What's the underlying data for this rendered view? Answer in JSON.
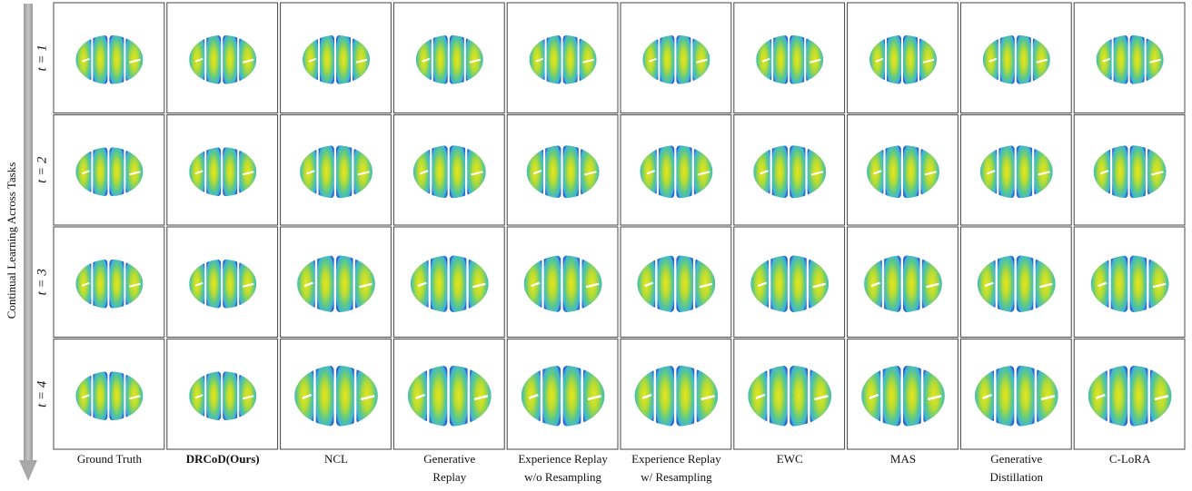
{
  "figure": {
    "axis_label": "Continual Learning Across Tasks",
    "rows": [
      "t = 1",
      "t = 2",
      "t = 3",
      "t = 4"
    ],
    "columns": [
      [
        "Ground Truth"
      ],
      [
        "DRCoD(Ours)"
      ],
      [
        "NCL"
      ],
      [
        "Generative",
        "Replay"
      ],
      [
        "Experience Replay",
        "w/o Resampling"
      ],
      [
        "Experience Replay",
        "w/ Resampling"
      ],
      [
        "EWC"
      ],
      [
        "MAS"
      ],
      [
        "Generative",
        "Distillation"
      ],
      [
        "C-LoRA"
      ]
    ]
  }
}
